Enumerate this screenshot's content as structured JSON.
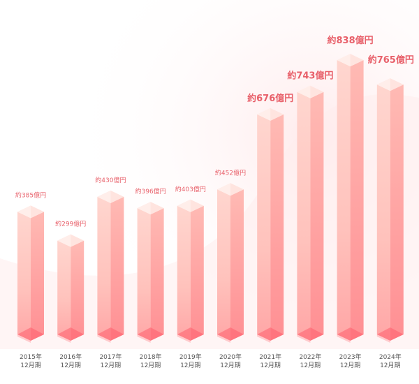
{
  "chart_data": {
    "type": "bar",
    "style": "3d-prism",
    "categories": [
      [
        "2015年",
        "12月期"
      ],
      [
        "2016年",
        "12月期"
      ],
      [
        "2017年",
        "12月期"
      ],
      [
        "2018年",
        "12月期"
      ],
      [
        "2019年",
        "12月期"
      ],
      [
        "2020年",
        "12月期"
      ],
      [
        "2021年",
        "12月期"
      ],
      [
        "2022年",
        "12月期"
      ],
      [
        "2023年",
        "12月期"
      ],
      [
        "2024年",
        "12月期"
      ]
    ],
    "values": [
      385,
      299,
      430,
      396,
      403,
      452,
      676,
      743,
      838,
      765
    ],
    "value_labels": [
      "約385億円",
      "約299億円",
      "約430億円",
      "約396億円",
      "約403億円",
      "約452億円",
      "約676億円",
      "約743億円",
      "約838億円",
      "約765億円"
    ],
    "unit": "億円",
    "colors": {
      "bar_light": "#ffd3cc",
      "bar_mid": "#ffb0ab",
      "bar_dark": "#ff6f7a",
      "label": "#e8606a",
      "tick": "#555555"
    }
  }
}
